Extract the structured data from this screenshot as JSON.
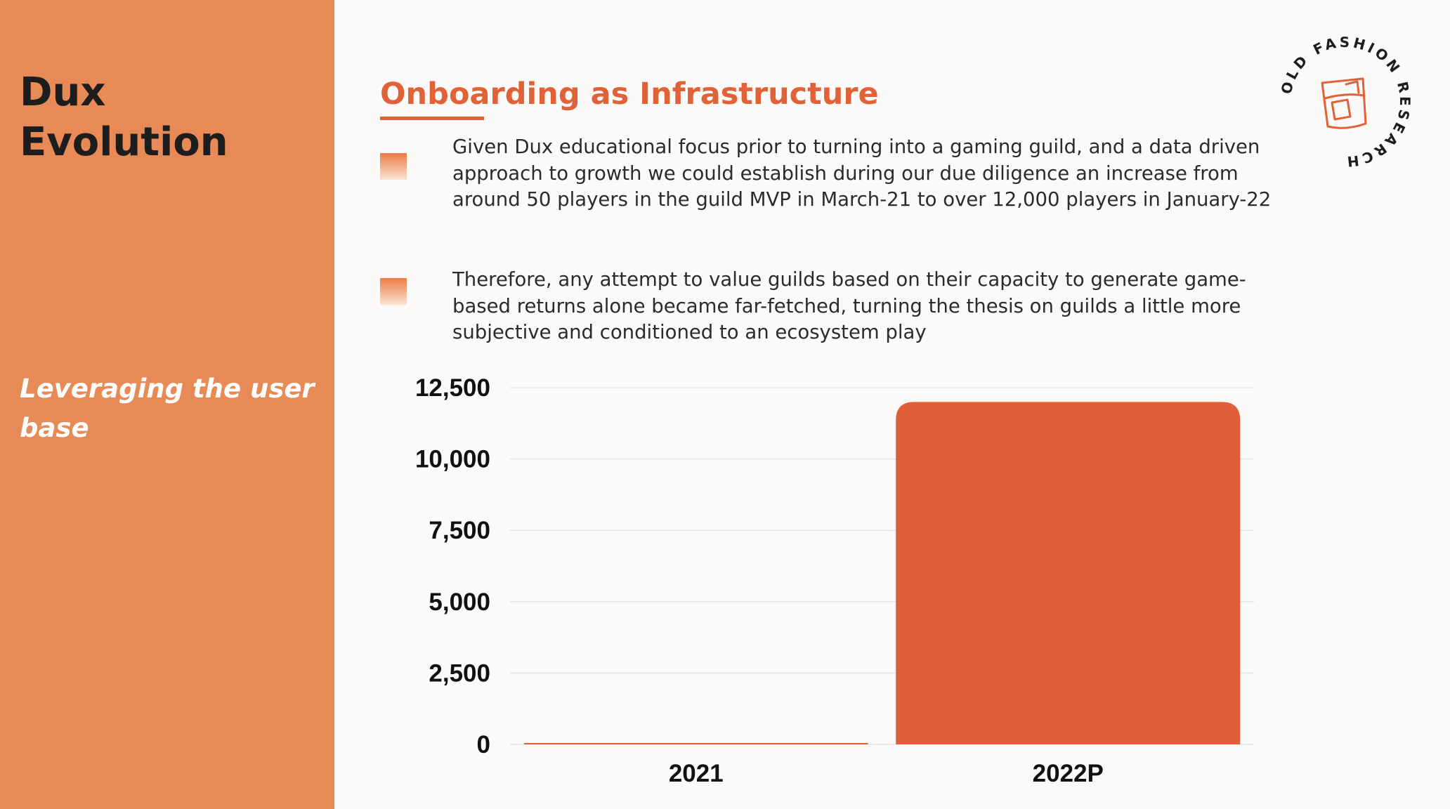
{
  "sidebar": {
    "title_line1": "Dux",
    "title_line2": "Evolution",
    "subtitle": "Leveraging the user base",
    "background": "#e88a56"
  },
  "header": {
    "title": "Onboarding as Infrastructure",
    "accent_color": "#e06238"
  },
  "bullets": [
    {
      "text": "Given Dux educational focus prior to turning into a gaming guild, and a data driven approach to growth we could establish during our due diligence an increase from around 50 players in the guild MVP in March-21 to over 12,000 players in January-22"
    },
    {
      "text": "Therefore, any attempt to value guilds based on their capacity to generate game-based returns alone became far-fetched, turning the thesis on guilds a little more subjective and conditioned to an ecosystem play"
    }
  ],
  "logo": {
    "text": "OLD FASHION RESEARCH",
    "icon": "whiskey-glass-icon"
  },
  "chart_data": {
    "type": "bar",
    "categories": [
      "2021",
      "2022P"
    ],
    "values": [
      50,
      12000
    ],
    "ylim": [
      0,
      12500
    ],
    "yticks": [
      0,
      2500,
      5000,
      7500,
      10000,
      12500
    ],
    "ytick_labels": [
      "0",
      "2,500",
      "5,000",
      "7,500",
      "10,000",
      "12,500"
    ],
    "grid": true,
    "legend": "none",
    "bar_color": "#e05e38",
    "title": "",
    "xlabel": "",
    "ylabel": ""
  }
}
